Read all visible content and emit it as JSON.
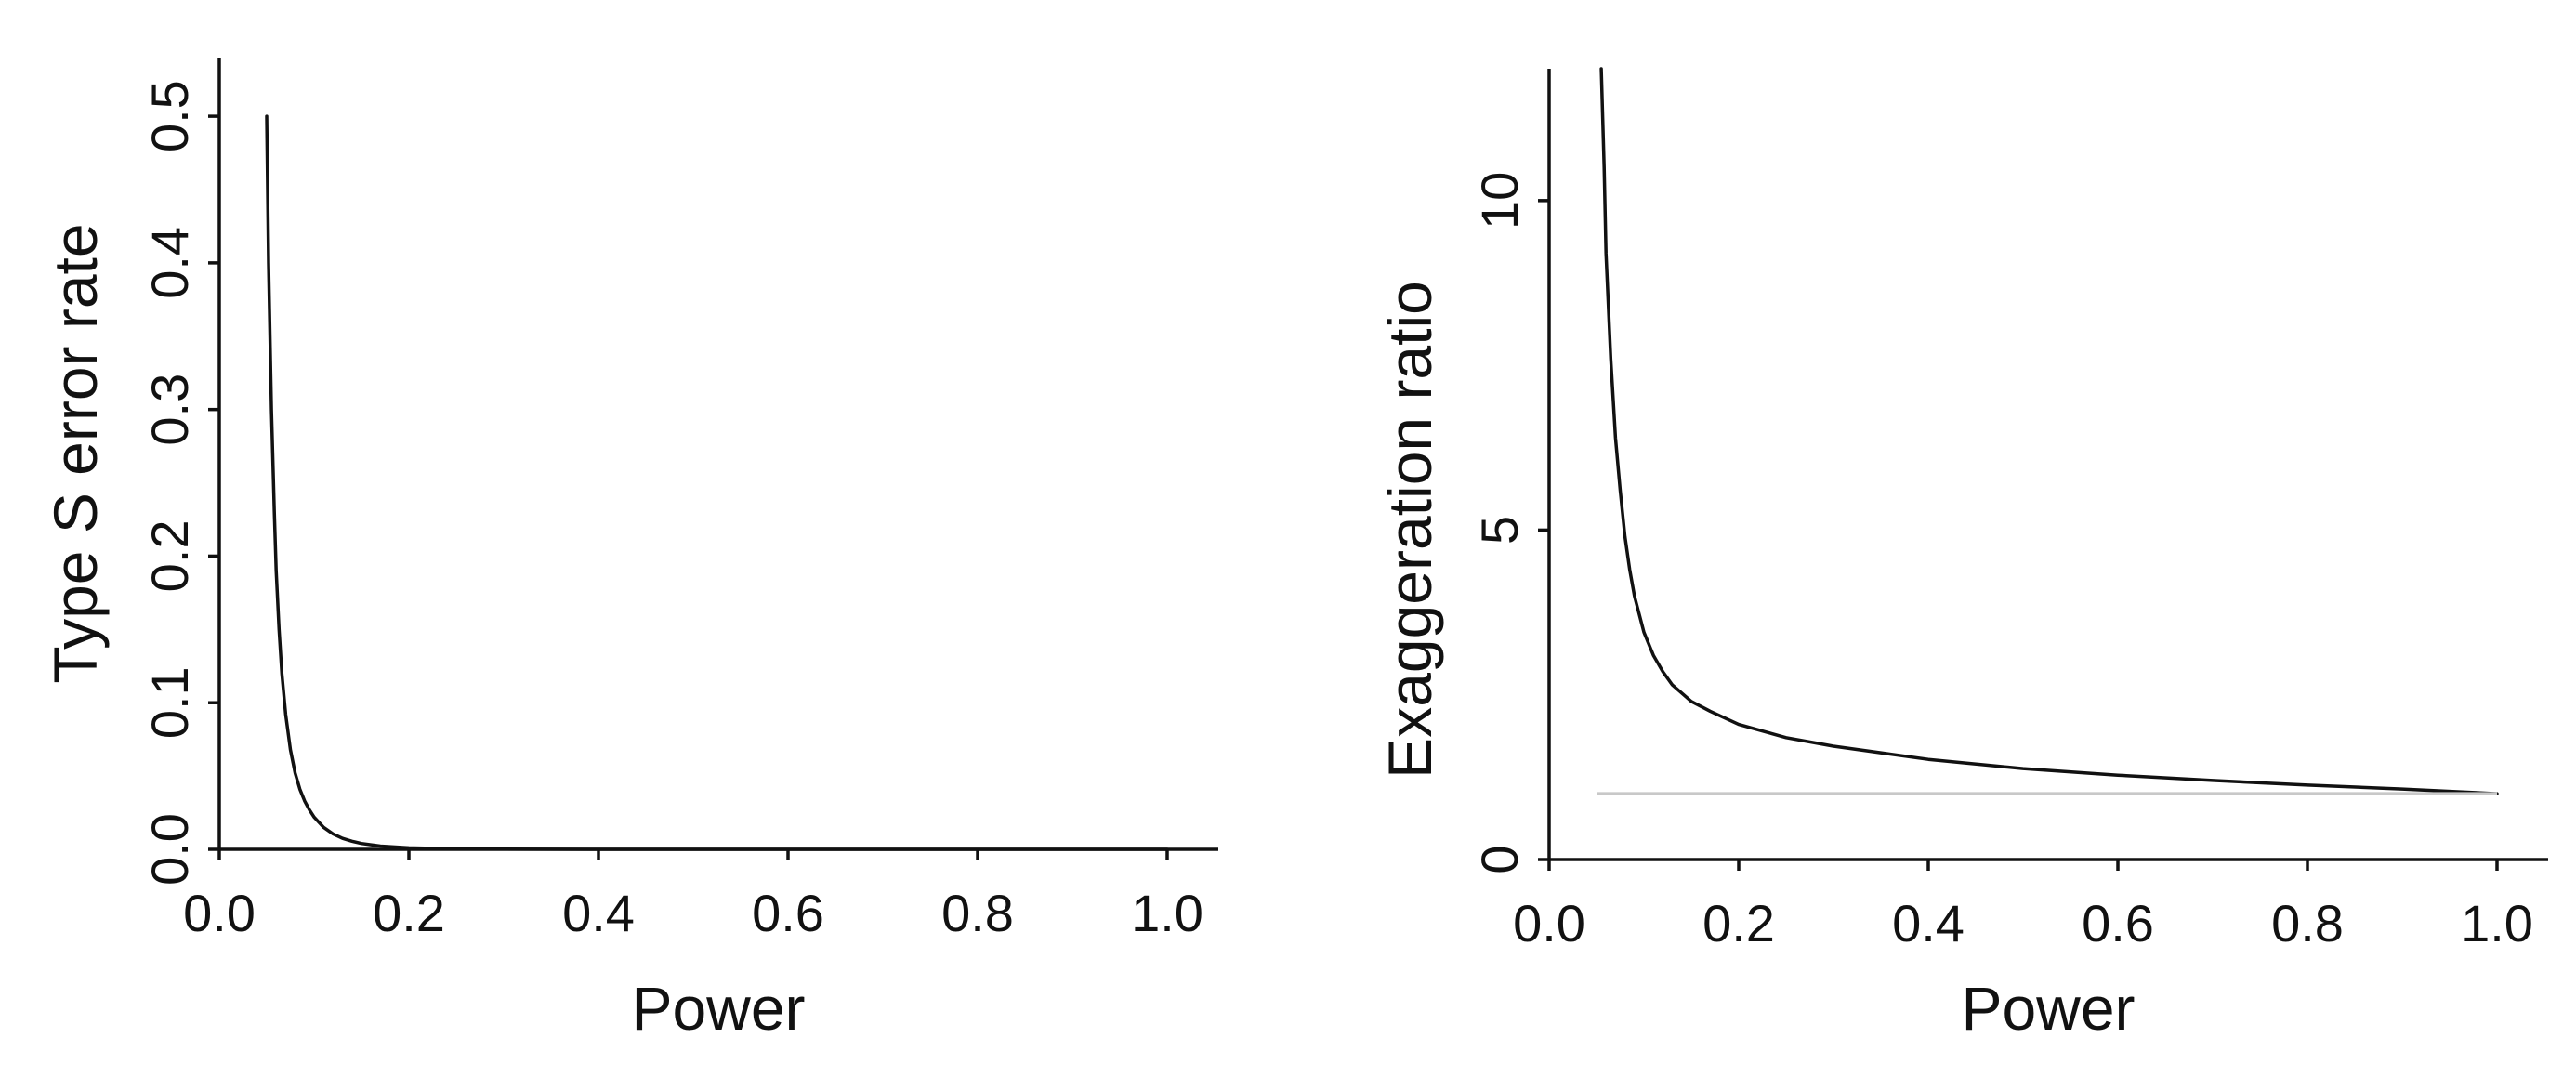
{
  "chart_data": [
    {
      "type": "line",
      "xlabel": "Power",
      "ylabel": "Type S error rate",
      "xlim": [
        0,
        1.05
      ],
      "ylim": [
        0,
        0.54
      ],
      "xticks": [
        "0.0",
        "0.2",
        "0.4",
        "0.6",
        "0.8",
        "1.0"
      ],
      "yticks": [
        "0.0",
        "0.1",
        "0.2",
        "0.3",
        "0.4",
        "0.5"
      ],
      "grid": false,
      "series": [
        {
          "color": "#111111",
          "x": [
            0.05,
            0.052,
            0.055,
            0.058,
            0.06,
            0.063,
            0.066,
            0.07,
            0.075,
            0.08,
            0.085,
            0.09,
            0.095,
            0.1,
            0.11,
            0.12,
            0.13,
            0.14,
            0.15,
            0.17,
            0.2,
            0.25,
            0.3,
            0.4,
            0.5,
            0.6,
            0.7,
            0.8,
            0.9,
            1.0
          ],
          "y": [
            0.5,
            0.4,
            0.3,
            0.23,
            0.19,
            0.15,
            0.12,
            0.092,
            0.068,
            0.052,
            0.041,
            0.033,
            0.027,
            0.022,
            0.015,
            0.0105,
            0.0075,
            0.0055,
            0.004,
            0.0022,
            0.001,
            0.0003,
            0.0001,
            0,
            0,
            0,
            0,
            0,
            0,
            0
          ]
        }
      ]
    },
    {
      "type": "line",
      "xlabel": "Power",
      "ylabel": "Exaggeration ratio",
      "xlim": [
        0,
        1.05
      ],
      "ylim": [
        0,
        12
      ],
      "xticks": [
        "0.0",
        "0.2",
        "0.4",
        "0.6",
        "0.8",
        "1.0"
      ],
      "yticks": [
        "0",
        "5",
        "10"
      ],
      "grid": false,
      "series": [
        {
          "color": "#111111",
          "x": [
            0.055,
            0.058,
            0.06,
            0.065,
            0.07,
            0.075,
            0.08,
            0.085,
            0.09,
            0.1,
            0.11,
            0.12,
            0.13,
            0.15,
            0.17,
            0.2,
            0.25,
            0.3,
            0.35,
            0.4,
            0.5,
            0.6,
            0.7,
            0.8,
            0.9,
            1.0
          ],
          "y": [
            12,
            10.5,
            9.2,
            7.6,
            6.4,
            5.6,
            4.9,
            4.4,
            4.0,
            3.45,
            3.1,
            2.85,
            2.65,
            2.4,
            2.25,
            2.05,
            1.85,
            1.72,
            1.62,
            1.52,
            1.38,
            1.28,
            1.2,
            1.13,
            1.07,
            1.0
          ]
        },
        {
          "color": "#c8c8c8",
          "x": [
            0.05,
            1.0
          ],
          "y": [
            1,
            1
          ]
        }
      ]
    }
  ]
}
